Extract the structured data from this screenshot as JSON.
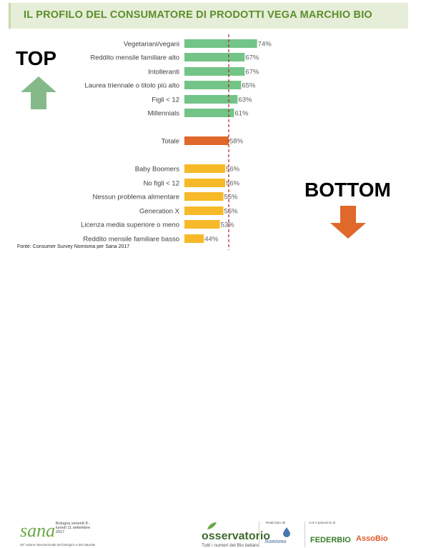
{
  "title": "IL PROFILO DEL CONSUMATORE DI PRODOTTI VEGA MARCHIO BIO",
  "side_labels": {
    "top": "TOP",
    "bottom": "BOTTOM"
  },
  "source": "Fonte: Consumer Survey Nomisma per Sana 2017",
  "colors": {
    "green": "#73c487",
    "orange": "#e0682a",
    "yellow": "#f7b928",
    "title_green": "#5b8f2b",
    "reference_line": "#b02020"
  },
  "chart_data": {
    "type": "bar",
    "orientation": "horizontal",
    "categories": [
      "Vegetariani/vegani",
      "Reddito mensile familiare alto",
      "Intolleranti",
      "Laurea triennale o titolo più alto",
      "Figli < 12",
      "Millennials",
      "Totale",
      "Baby Boomers",
      "No figli < 12",
      "Nessun problema alimentare",
      "Generation X",
      "Licenza media superiore o meno",
      "Reddito mensile familiare basso"
    ],
    "values": [
      74,
      67,
      67,
      65,
      63,
      61,
      58,
      56,
      56,
      55,
      55,
      53,
      44
    ],
    "labels": [
      "74%",
      "67%",
      "67%",
      "65%",
      "63%",
      "61%",
      "58%",
      "56%",
      "56%",
      "55%",
      "55%",
      "53%",
      "44%"
    ],
    "groups": [
      "top",
      "top",
      "top",
      "top",
      "top",
      "top",
      "total",
      "bottom",
      "bottom",
      "bottom",
      "bottom",
      "bottom",
      "bottom"
    ],
    "reference_line": 58,
    "unit": "%"
  },
  "footer": {
    "sana": {
      "logo": "sana",
      "details": "Bologna venerdì 8 - lunedì 11 settembre 2017",
      "tagline": "29° salone internazionale del biologico e del naturale"
    },
    "osservatorio": {
      "name": "osservatorio",
      "subtitle": "Tutti i numeri del Bio italiano"
    },
    "realizzato_da": "Realizzato da",
    "nomisma": "Nomisma",
    "con_patrocinio": "Con il patrocinio di",
    "federbio": "FEDERBIO",
    "assobio": "AssoBio"
  }
}
